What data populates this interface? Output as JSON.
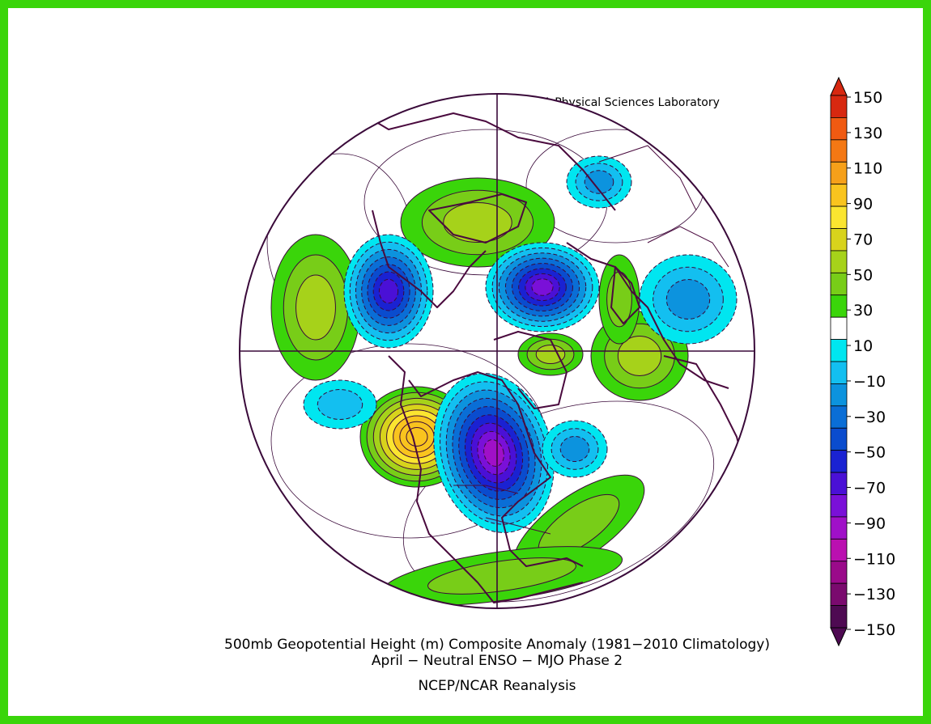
{
  "credit": "NOAA Physical Sciences Laboratory",
  "caption": {
    "line1": "500mb Geopotential Height (m) Composite Anomaly (1981−2010 Climatology)",
    "line2": "April − Neutral ENSO − MJO Phase 2",
    "line3": "NCEP/NCAR Reanalysis"
  },
  "colorbar": {
    "min": -150,
    "max": 150,
    "labels": [
      "150",
      "130",
      "110",
      "90",
      "70",
      "50",
      "30",
      "10",
      "−10",
      "−30",
      "−50",
      "−70",
      "−90",
      "−110",
      "−130",
      "−150"
    ],
    "colors": [
      "#d72810",
      "#f05a12",
      "#f47814",
      "#f6a01a",
      "#f9c41e",
      "#fbe530",
      "#d8d31c",
      "#a6d21a",
      "#78cd18",
      "#3ad50a",
      "#ffffff",
      "#00e6f0",
      "#13bff0",
      "#0c93de",
      "#0a6ed6",
      "#0a4cce",
      "#1a22d2",
      "#4a10d6",
      "#7a10d8",
      "#a010c8",
      "#ba10b0",
      "#9a0a8a",
      "#7a0a6e",
      "#4e0a52"
    ]
  },
  "colors": {
    "frame": "#3ad50a",
    "coast": "#4a0a3e",
    "contour": "#3a0a3a"
  }
}
